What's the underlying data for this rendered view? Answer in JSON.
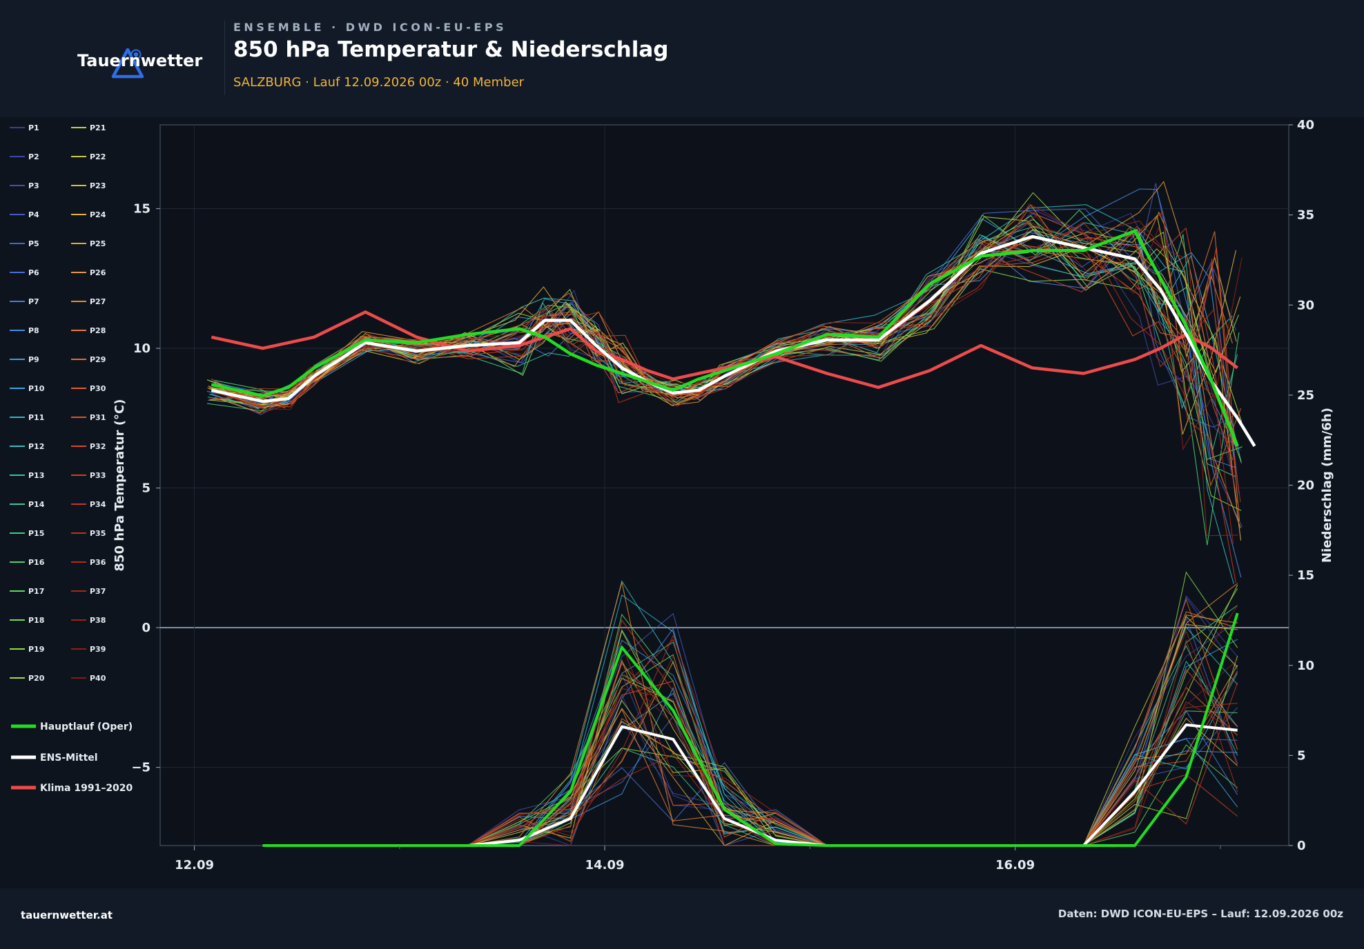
{
  "header": {
    "brand": "Tauernwetter",
    "kicker": "ENSEMBLE · DWD ICON-EU-EPS",
    "title": "850 hPa Temperatur & Niederschlag",
    "subtitle": "SALZBURG · Lauf 12.09.2026 00z · 40 Member"
  },
  "footer": {
    "site": "tauernwetter.at",
    "source": "Daten: DWD ICON-EU-EPS – Lauf: 12.09.2026 00z"
  },
  "colors": {
    "background": "#0e141d",
    "header": "#111a26",
    "oper": "#22dd22",
    "mean": "#ffffff",
    "clim": "#ee4b4b",
    "accent": "#2f6ee6"
  },
  "icons": {
    "logo": "mountain-triangle-icon"
  },
  "chart_data": {
    "type": "line",
    "x_unit": "hours since 12.09.2026 00z",
    "x_ticks": [
      {
        "x": 0,
        "label": "12.09"
      },
      {
        "x": 48,
        "label": "14.09"
      },
      {
        "x": 96,
        "label": "16.09"
      }
    ],
    "xlim": [
      -4,
      128
    ],
    "y_left": {
      "label": "850 hPa Temperatur (°C)",
      "range": [
        -7.8,
        18
      ],
      "ticks": [
        {
          "v": -5,
          "label": "−5"
        },
        {
          "v": 0,
          "label": "0"
        },
        {
          "v": 5,
          "label": "5"
        },
        {
          "v": 10,
          "label": "10"
        },
        {
          "v": 15,
          "label": "15"
        }
      ]
    },
    "y_right": {
      "label": "Niederschlag (mm/6h)",
      "range": [
        0,
        40
      ],
      "ticks": [
        0,
        5,
        10,
        15,
        20,
        25,
        30,
        35,
        40
      ]
    },
    "temperature": {
      "x": [
        2,
        8,
        11,
        14,
        20,
        26,
        32,
        38,
        41,
        44,
        47,
        50,
        53,
        56,
        59,
        62,
        68,
        74,
        80,
        86,
        92,
        98,
        104,
        110,
        113,
        116,
        119,
        122
      ],
      "oper": [
        8.7,
        8.3,
        8.6,
        9.3,
        10.3,
        10.2,
        10.5,
        10.7,
        10.4,
        9.8,
        9.4,
        9.1,
        8.8,
        8.5,
        8.9,
        9.2,
        9.8,
        10.5,
        10.4,
        12.3,
        13.3,
        13.5,
        13.5,
        14.2,
        12.5,
        10.8,
        8.8,
        6.5
      ],
      "mean": [
        8.5,
        8.1,
        8.2,
        9.0,
        10.2,
        9.9,
        10.1,
        10.2,
        11.0,
        11.0,
        10.1,
        9.3,
        8.8,
        8.4,
        8.5,
        9.0,
        9.9,
        10.3,
        10.3,
        11.7,
        13.4,
        14.0,
        13.6,
        13.2,
        12.1,
        10.5,
        8.8,
        7.5
      ],
      "mean_tail": {
        "x": 124,
        "v": 6.5
      },
      "climatology": [
        10.4,
        10.0,
        10.2,
        10.4,
        11.3,
        10.4,
        9.9,
        10.1,
        10.4,
        10.7,
        9.9,
        9.6,
        9.2,
        8.9,
        9.1,
        9.3,
        9.7,
        9.1,
        8.6,
        9.2,
        10.1,
        9.3,
        9.1,
        9.6,
        10.0,
        10.5,
        10.0,
        9.3
      ],
      "climatology_x": [
        2,
        8,
        11,
        14,
        20,
        26,
        32,
        38,
        41,
        44,
        47,
        50,
        53,
        56,
        59,
        62,
        68,
        74,
        80,
        86,
        92,
        98,
        104,
        110,
        113,
        116,
        119,
        122
      ]
    },
    "precipitation": {
      "x": [
        8,
        32,
        38,
        44,
        50,
        56,
        62,
        68,
        74,
        104,
        110,
        116,
        122
      ],
      "oper": [
        0,
        0,
        0,
        3.0,
        11.0,
        7.5,
        2.0,
        0.1,
        0,
        0,
        0,
        3.8,
        12.9
      ],
      "mean": [
        0,
        0,
        0.3,
        1.5,
        6.6,
        5.9,
        1.5,
        0.3,
        0,
        0,
        3.0,
        6.7,
        6.4
      ]
    },
    "members": [
      "P1",
      "P2",
      "P3",
      "P4",
      "P5",
      "P6",
      "P7",
      "P8",
      "P9",
      "P10",
      "P11",
      "P12",
      "P13",
      "P14",
      "P15",
      "P16",
      "P17",
      "P18",
      "P19",
      "P20",
      "P21",
      "P22",
      "P23",
      "P24",
      "P25",
      "P26",
      "P27",
      "P28",
      "P29",
      "P30",
      "P31",
      "P32",
      "P33",
      "P34",
      "P35",
      "P36",
      "P37",
      "P38",
      "P39",
      "P40"
    ],
    "member_colors": [
      "#3a3f8f",
      "#3e46a0",
      "#4250b0",
      "#4559bf",
      "#4863cc",
      "#4a6fd6",
      "#4b7ddd",
      "#4a8ce2",
      "#429be2",
      "#3aa9dc",
      "#35b4cf",
      "#33bdbf",
      "#35c3ac",
      "#3ac89a",
      "#42cd87",
      "#4fd273",
      "#63d663",
      "#78d957",
      "#8fdb4e",
      "#a5d947",
      "#bcd342",
      "#cccc3f",
      "#d8c23c",
      "#e0b63a",
      "#e6a838",
      "#e99a36",
      "#ea8c33",
      "#e97d31",
      "#e76e2e",
      "#e4602b",
      "#df5428",
      "#d94925",
      "#d14022",
      "#c8381f",
      "#be321c",
      "#b32c1a",
      "#a72718",
      "#9b2316",
      "#8e2014",
      "#821d12"
    ],
    "legend": {
      "oper": "Hauptlauf (Oper)",
      "mean": "ENS-Mittel",
      "clim": "Klima 1991–2020"
    },
    "grid": true
  }
}
